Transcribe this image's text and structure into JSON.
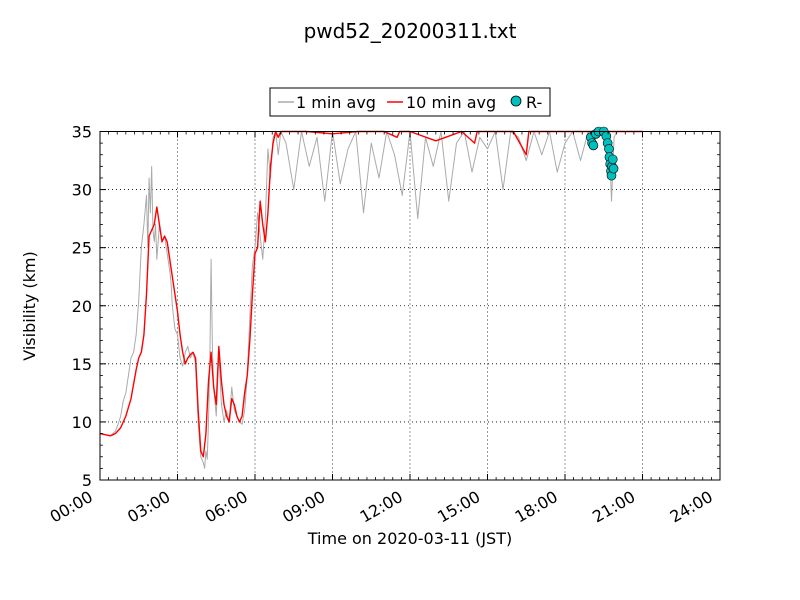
{
  "chart_data": {
    "type": "line",
    "title": "pwd52_20200311.txt",
    "xlabel": "Time on 2020-03-11 (JST)",
    "ylabel": "Visibility (km)",
    "x_unit": "hours",
    "xlim": [
      0,
      24
    ],
    "ylim": [
      5,
      35
    ],
    "grid": true,
    "legend_position": "top-center",
    "x_ticks": [
      {
        "value": 0,
        "label": "00:00"
      },
      {
        "value": 3,
        "label": "03:00"
      },
      {
        "value": 6,
        "label": "06:00"
      },
      {
        "value": 9,
        "label": "09:00"
      },
      {
        "value": 12,
        "label": "12:00"
      },
      {
        "value": 15,
        "label": "15:00"
      },
      {
        "value": 18,
        "label": "18:00"
      },
      {
        "value": 21,
        "label": "21:00"
      },
      {
        "value": 24,
        "label": "24:00"
      }
    ],
    "y_ticks": [
      5,
      10,
      15,
      20,
      25,
      30,
      35
    ],
    "series": [
      {
        "name": "1 min avg",
        "kind": "line",
        "color": "#aaaaaa",
        "x": [
          0,
          0.2,
          0.4,
          0.6,
          0.7,
          0.8,
          0.9,
          1.0,
          1.1,
          1.2,
          1.3,
          1.4,
          1.5,
          1.6,
          1.7,
          1.8,
          1.85,
          1.9,
          1.95,
          2.0,
          2.05,
          2.1,
          2.15,
          2.2,
          2.3,
          2.4,
          2.5,
          2.6,
          2.7,
          2.75,
          2.8,
          2.9,
          3.0,
          3.1,
          3.2,
          3.3,
          3.4,
          3.5,
          3.6,
          3.7,
          3.8,
          3.9,
          4.0,
          4.05,
          4.1,
          4.15,
          4.2,
          4.25,
          4.3,
          4.35,
          4.4,
          4.5,
          4.6,
          4.7,
          4.8,
          4.9,
          5.0,
          5.1,
          5.2,
          5.3,
          5.4,
          5.5,
          5.6,
          5.7,
          5.8,
          5.9,
          6.0,
          6.1,
          6.2,
          6.3,
          6.4,
          6.5,
          6.6,
          6.7,
          6.8,
          6.9,
          7.0,
          7.2,
          7.5,
          7.8,
          8.1,
          8.4,
          8.7,
          9.0,
          9.3,
          9.6,
          9.9,
          10.2,
          10.5,
          10.8,
          11.1,
          11.4,
          11.7,
          12.0,
          12.3,
          12.6,
          12.9,
          13.2,
          13.5,
          13.8,
          14.1,
          14.4,
          14.7,
          15.0,
          15.3,
          15.6,
          15.9,
          16.2,
          16.5,
          16.8,
          17.1,
          17.4,
          17.7,
          18.0,
          18.3,
          18.6,
          18.9,
          19.1,
          19.3,
          19.5,
          19.7,
          19.8,
          19.9,
          20.0,
          20.2,
          20.5,
          21.0
        ],
        "y": [
          9.0,
          8.9,
          8.8,
          9.2,
          9.8,
          10.5,
          11.8,
          12.5,
          14.0,
          15.5,
          16.0,
          17.5,
          20.5,
          25.0,
          27.0,
          29.5,
          25.0,
          31.0,
          28.0,
          32.0,
          26.5,
          25.5,
          27.0,
          24.0,
          27.0,
          25.5,
          26.0,
          24.5,
          23.0,
          22.0,
          20.0,
          18.0,
          17.5,
          15.5,
          14.8,
          16.0,
          16.5,
          15.5,
          16.0,
          15.0,
          10.0,
          7.0,
          6.5,
          6.0,
          7.5,
          6.8,
          10.0,
          15.0,
          24.0,
          16.5,
          13.0,
          10.5,
          16.0,
          11.5,
          10.0,
          11.0,
          10.0,
          13.0,
          11.0,
          10.5,
          10.0,
          9.8,
          11.0,
          14.0,
          19.0,
          23.5,
          25.0,
          28.0,
          26.0,
          24.0,
          27.5,
          33.5,
          31.0,
          34.5,
          35.0,
          33.0,
          35.0,
          34.0,
          30.0,
          35.0,
          32.0,
          34.5,
          29.0,
          35.0,
          30.5,
          33.5,
          35.0,
          28.0,
          34.0,
          31.0,
          35.0,
          33.0,
          29.5,
          35.0,
          27.5,
          34.5,
          32.0,
          35.0,
          29.0,
          34.0,
          35.0,
          31.5,
          34.5,
          33.5,
          35.0,
          30.0,
          35.0,
          34.5,
          32.5,
          35.0,
          33.0,
          35.0,
          31.5,
          34.0,
          35.0,
          32.5,
          35.0,
          34.0,
          35.0,
          34.5,
          35.0,
          29.0,
          34.5,
          35.0,
          35.0,
          35.0,
          35.0
        ]
      },
      {
        "name": "10 min avg",
        "kind": "line",
        "color": "#ff0000",
        "x": [
          0,
          0.2,
          0.4,
          0.5,
          0.6,
          0.8,
          1.0,
          1.2,
          1.4,
          1.5,
          1.6,
          1.7,
          1.8,
          1.9,
          2.0,
          2.1,
          2.2,
          2.3,
          2.4,
          2.5,
          2.6,
          2.7,
          2.8,
          2.9,
          3.0,
          3.1,
          3.2,
          3.3,
          3.4,
          3.5,
          3.6,
          3.7,
          3.8,
          3.9,
          4.0,
          4.1,
          4.2,
          4.3,
          4.4,
          4.5,
          4.6,
          4.7,
          4.8,
          4.9,
          5.0,
          5.1,
          5.2,
          5.3,
          5.4,
          5.5,
          5.6,
          5.7,
          5.8,
          5.9,
          6.0,
          6.1,
          6.2,
          6.3,
          6.4,
          6.5,
          6.6,
          6.7,
          6.8,
          6.9,
          7.0,
          7.5,
          8.0,
          9.0,
          10.0,
          11.0,
          11.5,
          11.6,
          12.0,
          13.0,
          14.0,
          14.5,
          14.6,
          15.0,
          16.0,
          16.5,
          16.6,
          17.0,
          18.0,
          19.0,
          20.0,
          21.0
        ],
        "y": [
          9.0,
          8.9,
          8.8,
          8.9,
          9.0,
          9.5,
          10.5,
          12.0,
          14.5,
          15.5,
          16.0,
          17.5,
          21.0,
          26.0,
          26.5,
          27.0,
          28.5,
          27.0,
          25.5,
          26.0,
          25.5,
          24.0,
          22.5,
          21.0,
          19.5,
          17.5,
          16.0,
          15.0,
          15.5,
          15.8,
          16.0,
          15.5,
          11.0,
          7.5,
          7.0,
          9.0,
          13.5,
          16.0,
          13.0,
          11.5,
          16.5,
          13.5,
          11.5,
          10.5,
          10.0,
          12.0,
          11.5,
          10.5,
          10.0,
          10.5,
          12.5,
          14.0,
          17.0,
          21.0,
          24.5,
          25.0,
          29.0,
          27.0,
          25.5,
          28.0,
          32.0,
          34.0,
          35.0,
          34.5,
          35.0,
          35.0,
          35.0,
          34.8,
          35.0,
          35.0,
          34.5,
          35.0,
          35.0,
          34.2,
          35.0,
          34.0,
          35.0,
          35.0,
          35.0,
          33.0,
          35.0,
          35.0,
          35.0,
          35.0,
          35.0,
          35.0
        ]
      },
      {
        "name": "R-",
        "kind": "scatter",
        "color": "#00bfbf",
        "x": [
          19.0,
          19.05,
          19.1,
          19.2,
          19.3,
          19.5,
          19.6,
          19.65,
          19.7,
          19.72,
          19.75,
          19.78,
          19.8,
          19.82,
          19.85,
          19.88
        ],
        "y": [
          34.5,
          34.0,
          33.8,
          34.8,
          35.0,
          35.0,
          34.6,
          34.0,
          33.5,
          32.8,
          32.2,
          31.6,
          31.2,
          32.0,
          32.6,
          31.8
        ]
      }
    ]
  }
}
